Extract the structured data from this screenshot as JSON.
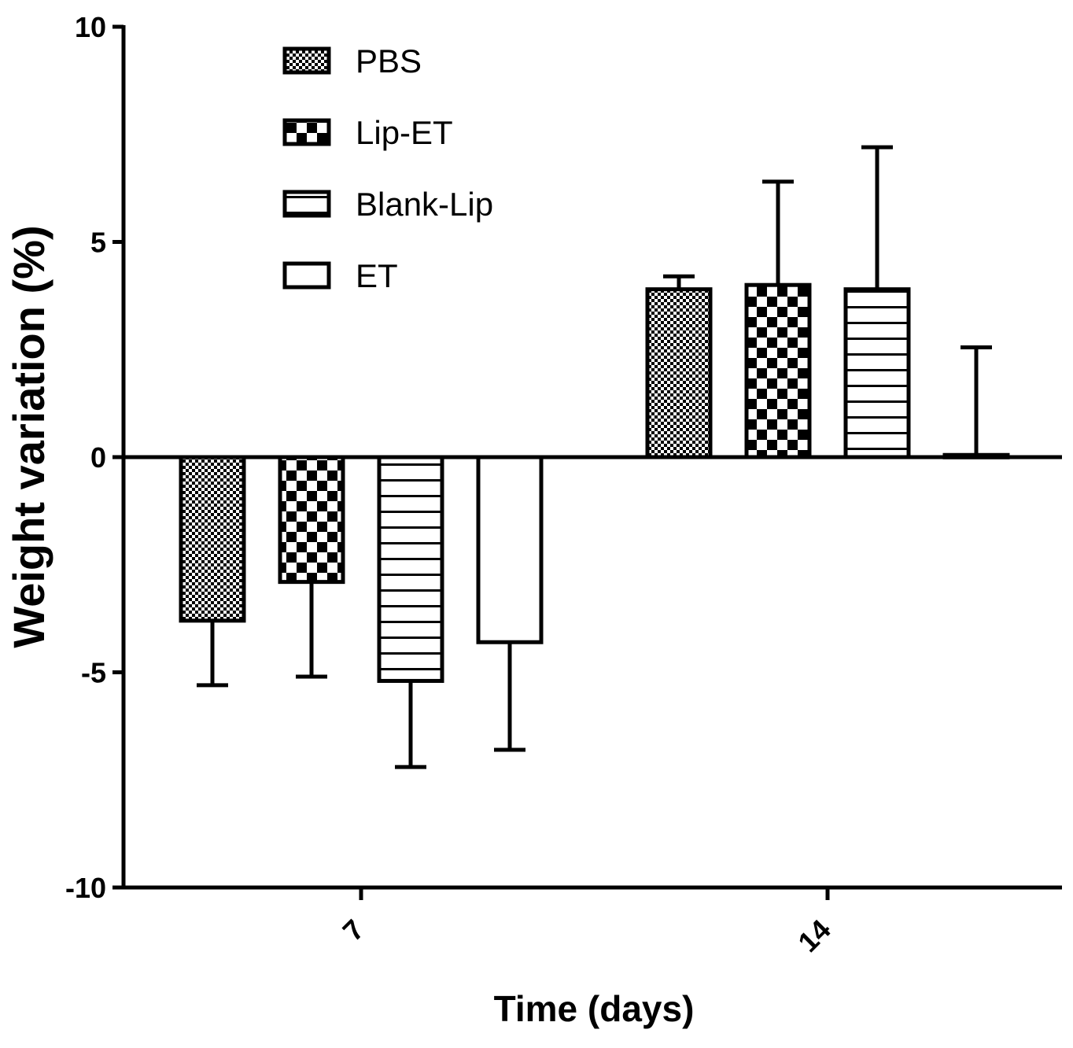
{
  "chart_data": {
    "type": "bar",
    "title": "",
    "xlabel": "Time (days)",
    "ylabel": "Weight variation (%)",
    "ylim": [
      -10,
      10
    ],
    "yticks": [
      10,
      5,
      0,
      -5,
      -10
    ],
    "ytick_labels": [
      "10",
      "5",
      "0",
      "-5",
      "-10"
    ],
    "categories": [
      "7",
      "14"
    ],
    "series": [
      {
        "name": "PBS",
        "pattern": "fine-check",
        "values": [
          -3.8,
          3.9
        ],
        "errors": [
          1.5,
          0.3
        ]
      },
      {
        "name": "Lip-ET",
        "pattern": "coarse-check",
        "values": [
          -2.9,
          4.0
        ],
        "errors": [
          2.2,
          2.4
        ]
      },
      {
        "name": "Blank-Lip",
        "pattern": "horizontal-lines",
        "values": [
          -5.2,
          3.9
        ],
        "errors": [
          2.0,
          3.3
        ]
      },
      {
        "name": "ET",
        "pattern": "empty",
        "values": [
          -4.3,
          0.05
        ],
        "errors": [
          2.5,
          2.5
        ]
      }
    ],
    "legend_position": "top-left",
    "grid": false
  }
}
